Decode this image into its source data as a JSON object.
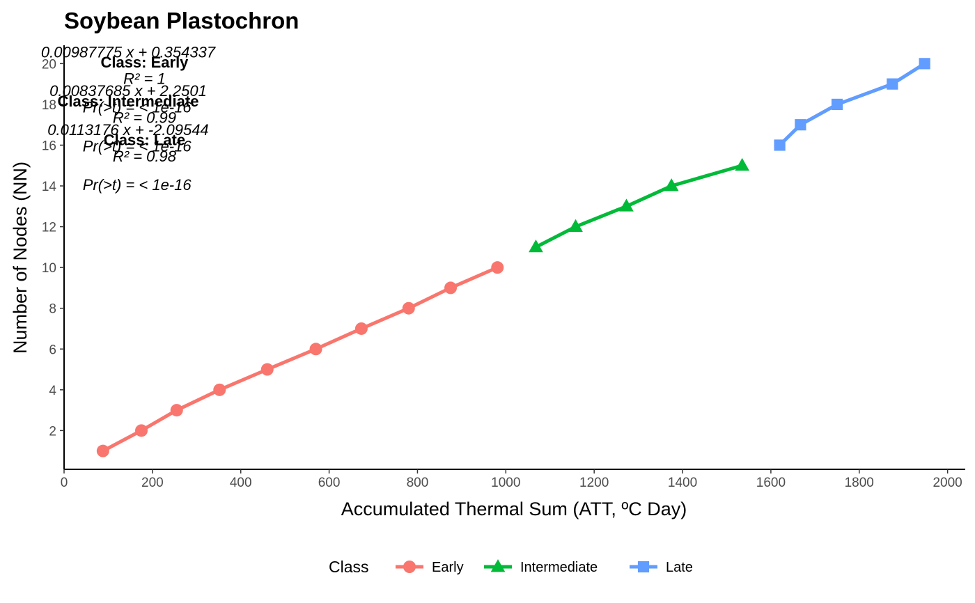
{
  "chart_data": {
    "type": "line",
    "title": "Soybean Plastochron",
    "xlabel": "Accumulated Thermal Sum (ATT, ºC Day)",
    "ylabel": "Number of Nodes (NN)",
    "xlim": [
      0,
      2040
    ],
    "ylim": [
      0.1,
      20.9
    ],
    "xticks": [
      0,
      200,
      400,
      600,
      800,
      1000,
      1200,
      1400,
      1600,
      1800,
      2000
    ],
    "yticks": [
      2,
      4,
      6,
      8,
      10,
      12,
      14,
      16,
      18,
      20
    ],
    "grid": false,
    "legend": {
      "position": "bottom",
      "title": "Class"
    },
    "series": [
      {
        "name": "Early",
        "color": "#F8766D",
        "marker": "circle",
        "x": [
          88,
          175,
          255,
          352,
          460,
          570,
          673,
          780,
          875,
          981
        ],
        "y": [
          1,
          2,
          3,
          4,
          5,
          6,
          7,
          8,
          9,
          10
        ]
      },
      {
        "name": "Intermediate",
        "color": "#00BA38",
        "marker": "triangle",
        "x": [
          1068,
          1158,
          1273,
          1375,
          1535
        ],
        "y": [
          11,
          12,
          13,
          14,
          15
        ]
      },
      {
        "name": "Late",
        "color": "#619CFF",
        "marker": "square",
        "x": [
          1620,
          1667,
          1750,
          1875,
          1948
        ],
        "y": [
          16,
          17,
          18,
          19,
          20
        ]
      }
    ],
    "annotations": [
      {
        "text": "0.00987775 x + 0.354337",
        "x": 145,
        "y": 20.3,
        "style": "italic"
      },
      {
        "text": "Class: Early",
        "x": 182,
        "y": 19.8,
        "style": "bold"
      },
      {
        "text": "R² = 1",
        "x": 182,
        "y": 19.0,
        "style": "italic"
      },
      {
        "text": "0.00837685 x + 2.2501",
        "x": 145,
        "y": 18.4,
        "style": "italic"
      },
      {
        "text": "Class: Intermediate",
        "x": 145,
        "y": 17.9,
        "style": "bold"
      },
      {
        "text": "Pr(>t) = < 1e-16",
        "x": 165,
        "y": 17.6,
        "style": "italic"
      },
      {
        "text": "R² = 0.99",
        "x": 182,
        "y": 17.1,
        "style": "italic"
      },
      {
        "text": "0.0113176 x + -2.09544",
        "x": 145,
        "y": 16.5,
        "style": "italic"
      },
      {
        "text": "Class: Late",
        "x": 182,
        "y": 16.0,
        "style": "bold"
      },
      {
        "text": "Pr(>t) = < 1e-16",
        "x": 165,
        "y": 15.7,
        "style": "italic"
      },
      {
        "text": "R² = 0.98",
        "x": 182,
        "y": 15.2,
        "style": "italic"
      },
      {
        "text": "Pr(>t) = < 1e-16",
        "x": 165,
        "y": 13.8,
        "style": "italic"
      }
    ]
  }
}
